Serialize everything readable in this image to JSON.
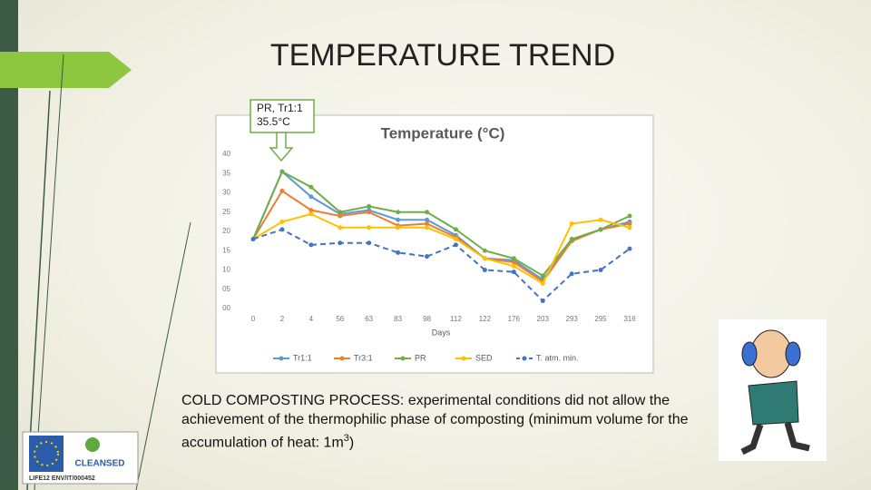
{
  "slide": {
    "title": "TEMPERATURE TREND",
    "callout": [
      "PR, Tr1:1",
      "35.5°C"
    ],
    "body": {
      "text_before": "COLD COMPOSTING PROCESS: experimental conditions did not allow the achievement of the thermophilic phase of composting (minimum volume for the accumulation of heat:  1m",
      "superscript": "3",
      "text_after": ")"
    },
    "logo": {
      "brand": "CLEANSED",
      "code": "LIFE12 ENV/IT/000452"
    }
  },
  "chart_data": {
    "type": "line",
    "title": "Temperature (°C)",
    "x_label": "Days",
    "categories": [
      "0",
      "2",
      "4",
      "56",
      "63",
      "83",
      "98",
      "112",
      "122",
      "176",
      "203",
      "293",
      "295",
      "316"
    ],
    "ylim": [
      0,
      40
    ],
    "yticks": [
      {
        "value": 0,
        "label": "00"
      },
      {
        "value": 5,
        "label": "05"
      },
      10,
      15,
      20,
      25,
      30,
      35,
      40
    ],
    "grid": false,
    "legend": "bottom",
    "series": [
      {
        "name": "Tr1:1",
        "color": "#5b9bd5",
        "line_style": "solid",
        "values": [
          18,
          35.5,
          29,
          24.5,
          25.5,
          23,
          23,
          19,
          13,
          12.5,
          7.5,
          17.5,
          20.5,
          22.5
        ]
      },
      {
        "name": "Tr3:1",
        "color": "#ed7d31",
        "line_style": "solid",
        "values": [
          18,
          30.5,
          25.5,
          24,
          25,
          21.5,
          22,
          18.5,
          13,
          12,
          7,
          17.5,
          20.5,
          22
        ]
      },
      {
        "name": "PR",
        "color": "#70ad47",
        "line_style": "solid",
        "values": [
          18,
          35.5,
          31.5,
          25,
          26.5,
          25,
          25,
          20.5,
          15,
          13,
          8.5,
          18,
          20.5,
          24
        ]
      },
      {
        "name": "SED",
        "color": "#ffc000",
        "line_style": "solid",
        "values": [
          18,
          22.5,
          24.5,
          21,
          21,
          21,
          21,
          18,
          13,
          11,
          6.5,
          22,
          23,
          21
        ]
      },
      {
        "name": "T. atm. min.",
        "color": "#4472c4",
        "line_style": "dashed",
        "values": [
          18,
          20.5,
          16.5,
          17,
          17,
          14.5,
          13.5,
          16.5,
          10,
          9.5,
          2,
          9,
          10,
          15.5
        ]
      }
    ]
  }
}
